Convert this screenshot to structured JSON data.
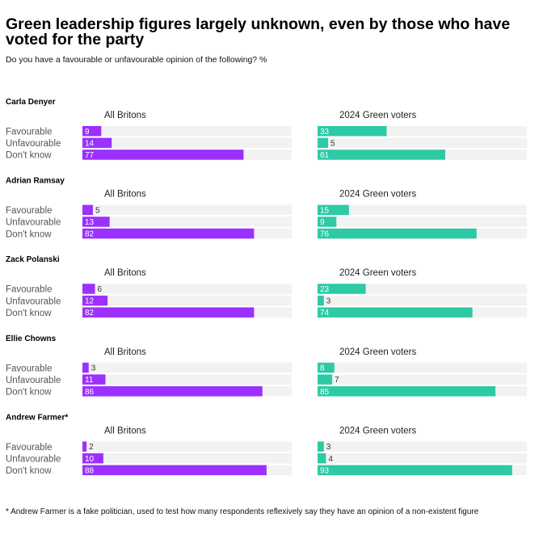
{
  "title": "Green leadership figures largely unknown, even by those who have voted for the party",
  "subtitle": "Do you have a favourable or unfavourable opinion of the following? %",
  "footnote": "* Andrew Farmer is a fake politician, used to test how many respondents reflexively say they have an opinion of a non-existent figure",
  "colors": {
    "all_britons": "#9b30ff",
    "green_voters": "#2ec9a5",
    "track": "#f2f2f2"
  },
  "chart_data": {
    "type": "bar",
    "orientation": "horizontal",
    "xlim": [
      0,
      100
    ],
    "categories": [
      "Favourable",
      "Unfavourable",
      "Don't know"
    ],
    "panels": [
      "All Britons",
      "2024 Green voters"
    ],
    "groups": [
      {
        "name": "Carla Denyer",
        "all_britons": [
          9,
          14,
          77
        ],
        "green_voters": [
          33,
          5,
          61
        ]
      },
      {
        "name": "Adrian Ramsay",
        "all_britons": [
          5,
          13,
          82
        ],
        "green_voters": [
          15,
          9,
          76
        ]
      },
      {
        "name": "Zack Polanski",
        "all_britons": [
          6,
          12,
          82
        ],
        "green_voters": [
          23,
          3,
          74
        ]
      },
      {
        "name": "Ellie Chowns",
        "all_britons": [
          3,
          11,
          86
        ],
        "green_voters": [
          8,
          7,
          85
        ]
      },
      {
        "name": "Andrew Farmer*",
        "all_britons": [
          2,
          10,
          88
        ],
        "green_voters": [
          3,
          4,
          93
        ]
      }
    ]
  }
}
